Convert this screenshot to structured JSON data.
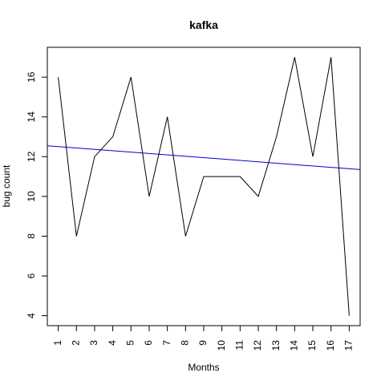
{
  "chart_data": {
    "type": "line",
    "title": "kafka",
    "xlabel": "Months",
    "ylabel": "bug count",
    "x": [
      1,
      2,
      3,
      4,
      5,
      6,
      7,
      8,
      9,
      10,
      11,
      12,
      13,
      14,
      15,
      16,
      17
    ],
    "x_tick_labels": [
      "1",
      "2",
      "3",
      "4",
      "5",
      "6",
      "7",
      "8",
      "9",
      "10",
      "11",
      "12",
      "13",
      "14",
      "15",
      "16",
      "17"
    ],
    "y_ticks": [
      4,
      6,
      8,
      10,
      12,
      14,
      16
    ],
    "y_tick_labels": [
      "4",
      "6",
      "8",
      "10",
      "12",
      "14",
      "16"
    ],
    "xlim": [
      0.4,
      17.6
    ],
    "ylim": [
      3.5,
      17.5
    ],
    "grid": false,
    "legend": "none",
    "series": [
      {
        "values": [
          16,
          8,
          12,
          13,
          16,
          10,
          14,
          8,
          11,
          11,
          11,
          10,
          13,
          17,
          12,
          17,
          4
        ],
        "color": "#000000"
      }
    ],
    "trend_line": {
      "color": "#0000cd",
      "start": [
        0.4,
        12.55
      ],
      "end": [
        17.6,
        11.35
      ]
    }
  }
}
